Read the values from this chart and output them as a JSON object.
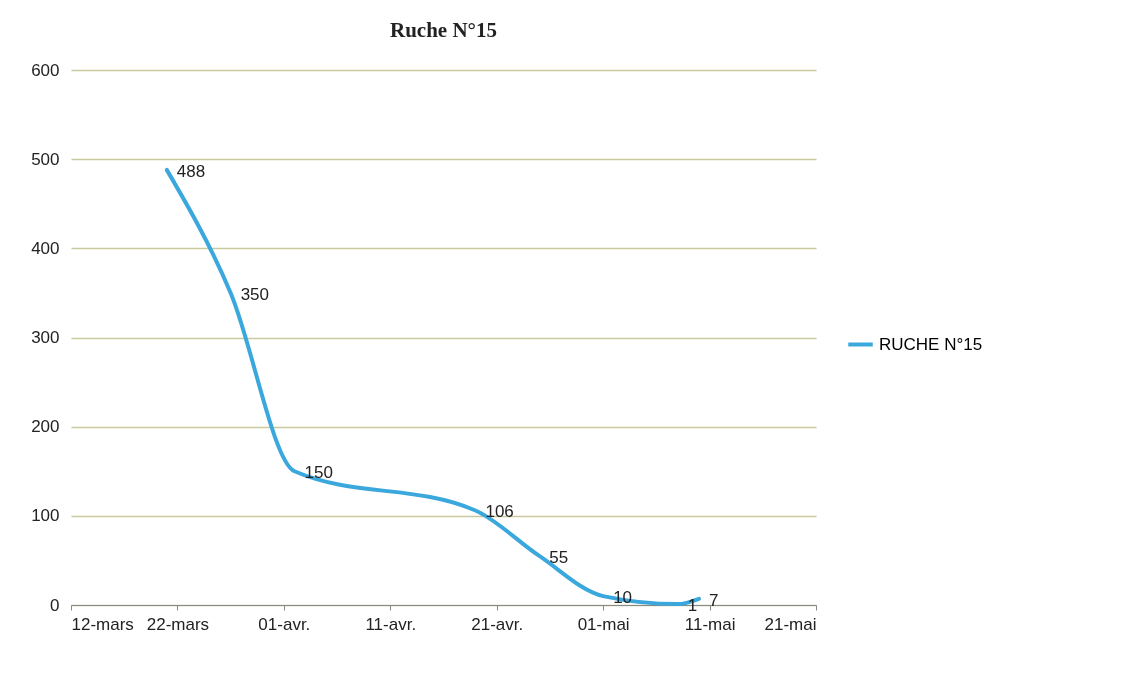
{
  "chart_data": {
    "type": "line",
    "title": "Ruche N°15",
    "x": [
      "--03-21",
      "--03-27",
      "--04-02",
      "--04-19",
      "--04-25",
      "--05-01",
      "--05-08",
      "--05-10"
    ],
    "series": [
      {
        "name": "RUCHE N°15",
        "color": "#3aa8dc",
        "values": [
          488,
          350,
          150,
          106,
          55,
          10,
          1,
          7
        ]
      }
    ],
    "xlim": [
      "--03-12",
      "--05-21"
    ],
    "xticks": [
      {
        "value": "--03-12",
        "label": "12-mars"
      },
      {
        "value": "--03-22",
        "label": "22-mars"
      },
      {
        "value": "--04-01",
        "label": "01-avr."
      },
      {
        "value": "--04-11",
        "label": "11-avr."
      },
      {
        "value": "--04-21",
        "label": "21-avr."
      },
      {
        "value": "--05-01",
        "label": "01-mai"
      },
      {
        "value": "--05-11",
        "label": "11-mai"
      },
      {
        "value": "--05-21",
        "label": "21-mai"
      }
    ],
    "ylim": [
      0,
      600
    ],
    "yticks": [
      0,
      100,
      200,
      300,
      400,
      500,
      600
    ],
    "grid": "y",
    "legend": "right",
    "data_labels": true,
    "marker": "none",
    "line_style": "solid"
  }
}
